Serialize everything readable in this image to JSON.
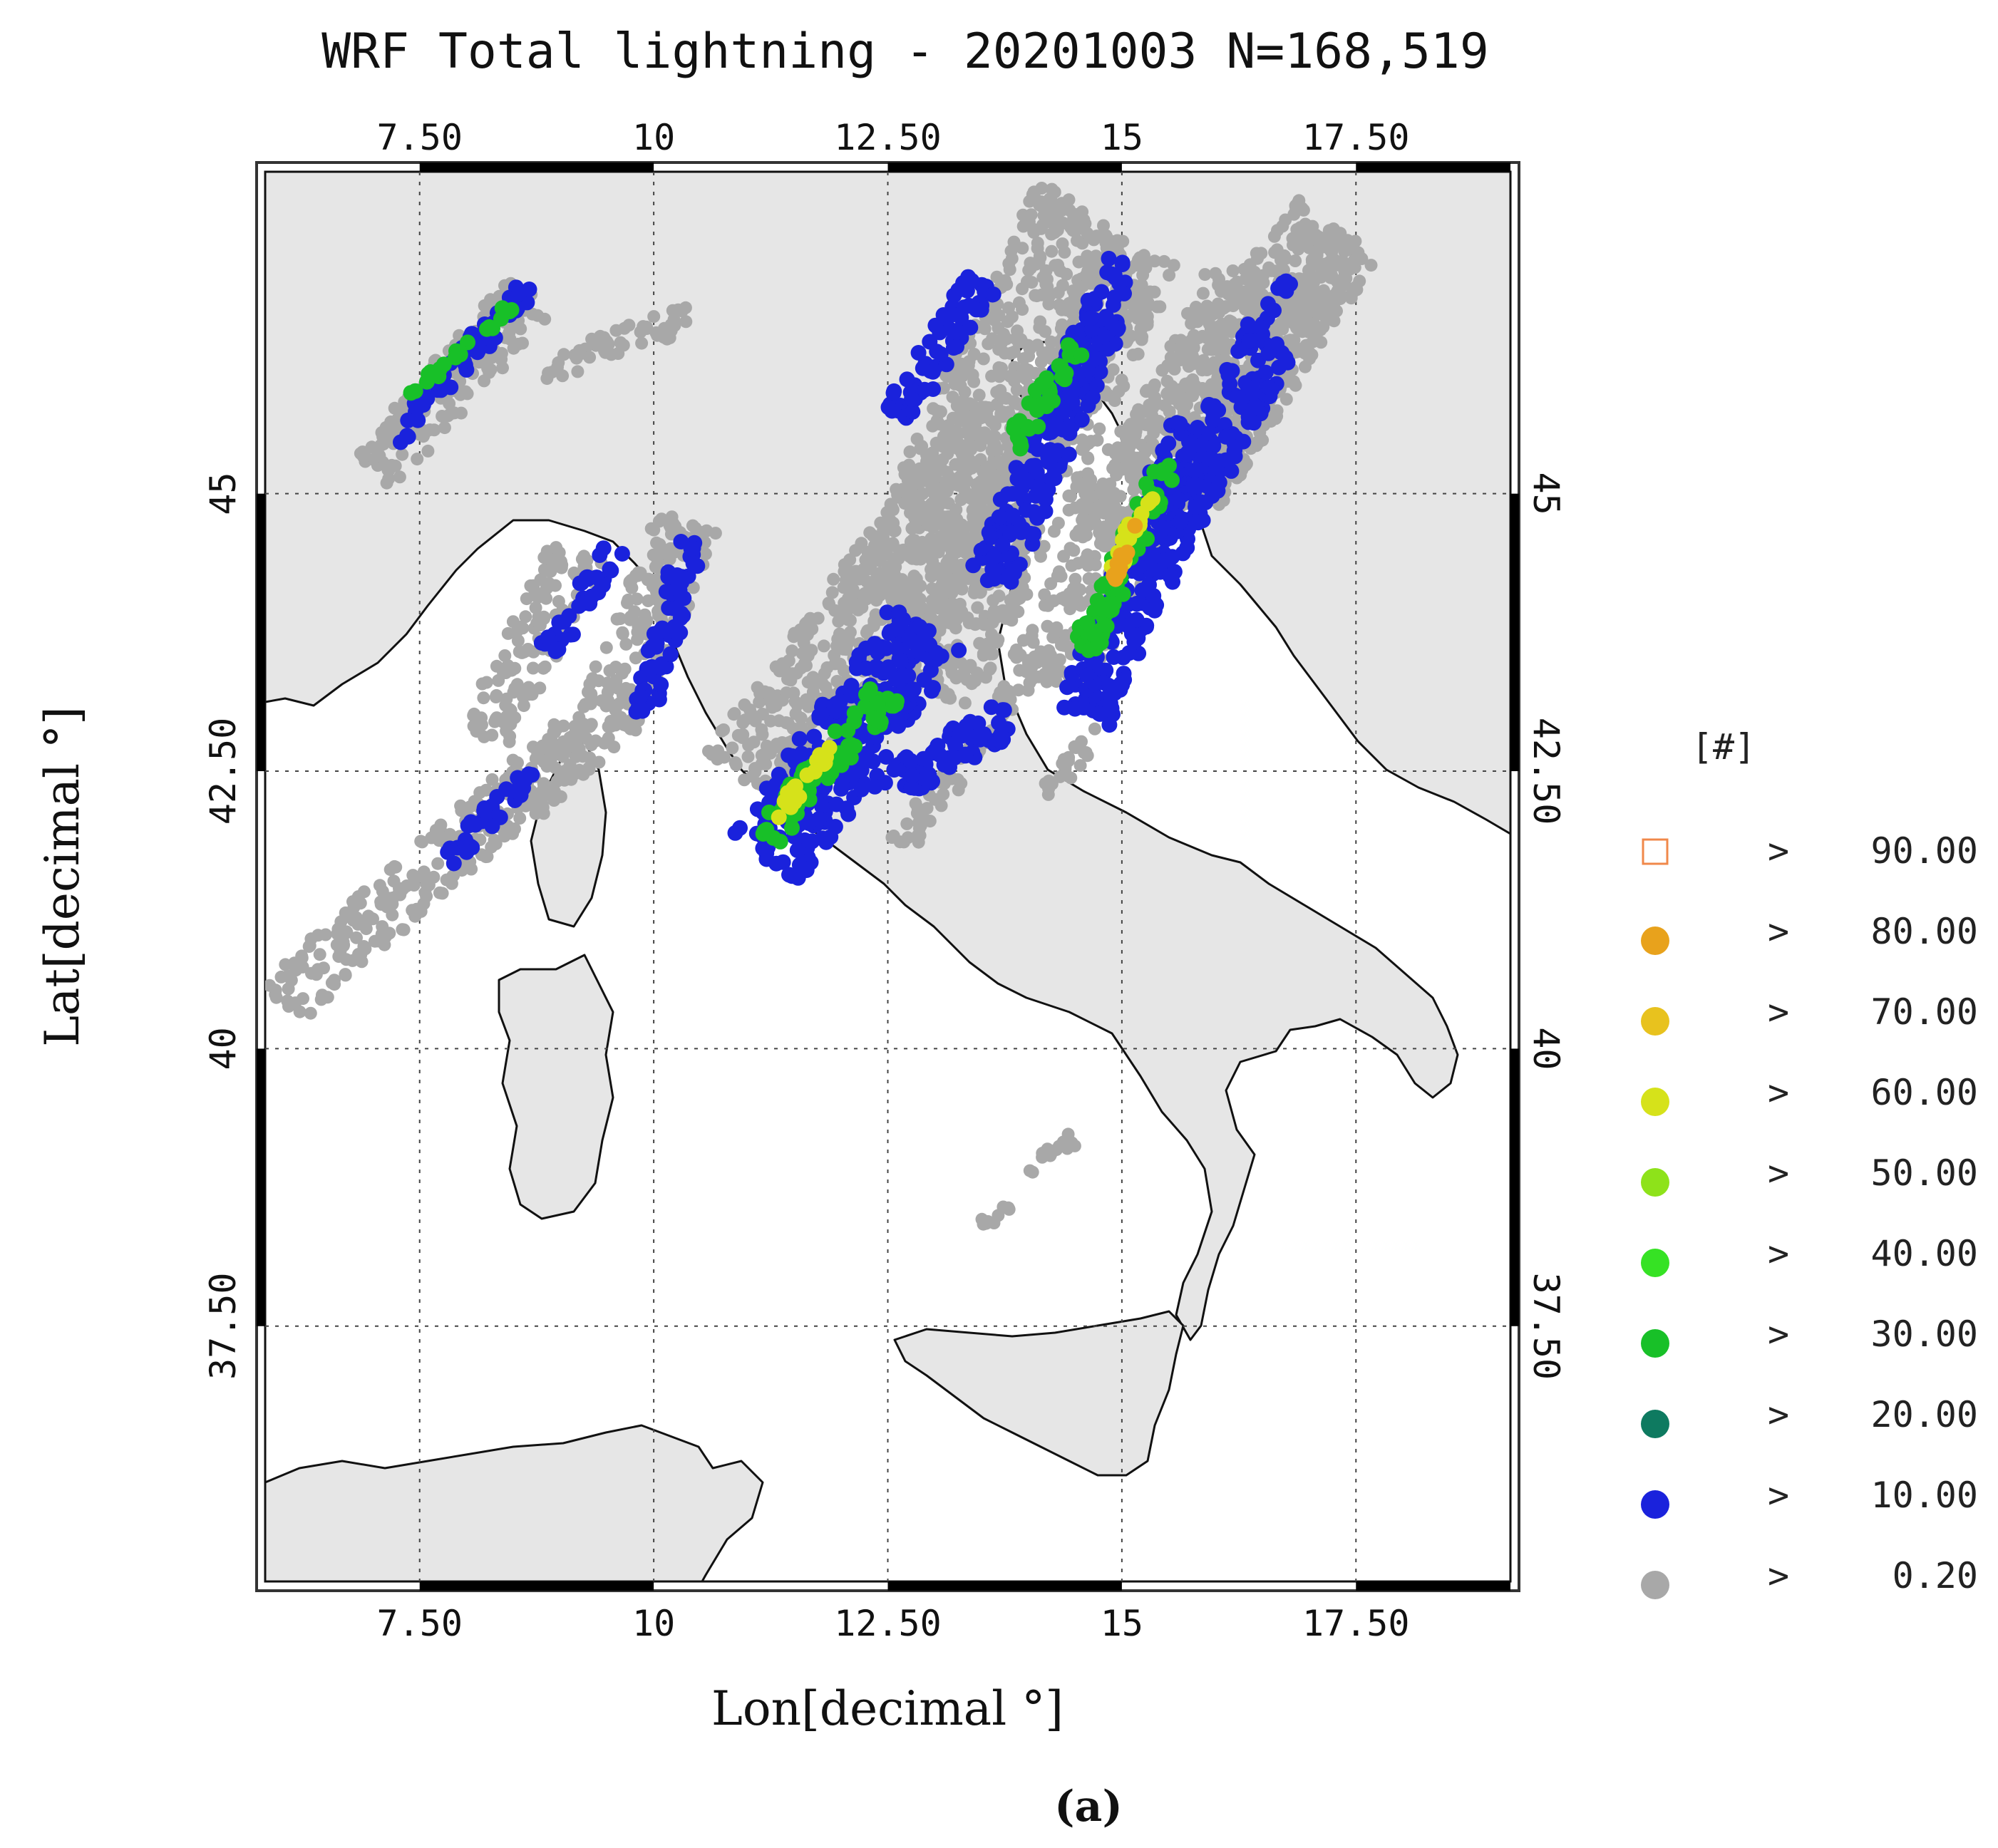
{
  "chart_data": {
    "type": "scatter",
    "title": "WRF Total lightning - 20201003 N=168,519",
    "xlabel": "Lon[decimal °]",
    "ylabel": "Lat[decimal °]",
    "xlim": [
      5.85,
      19.15
    ],
    "ylim": [
      35.2,
      47.9
    ],
    "x_ticks": [
      7.5,
      10,
      12.5,
      15,
      17.5
    ],
    "x_tick_labels": [
      "7.50",
      "10",
      "12.50",
      "15",
      "17.50"
    ],
    "y_ticks": [
      37.5,
      40,
      42.5,
      45
    ],
    "y_tick_labels": [
      "37.50",
      "40",
      "42.50",
      "45"
    ],
    "grid": true,
    "legend": {
      "title": "[#]",
      "placement": "right",
      "entries": [
        {
          "label": "90.00",
          "symbol": ">",
          "color": "#f0884a",
          "marker": "open-square"
        },
        {
          "label": "80.00",
          "symbol": ">",
          "color": "#e8a21c",
          "marker": "circle"
        },
        {
          "label": "70.00",
          "symbol": ">",
          "color": "#e8c21e",
          "marker": "circle"
        },
        {
          "label": "60.00",
          "symbol": ">",
          "color": "#d6e21a",
          "marker": "circle"
        },
        {
          "label": "50.00",
          "symbol": ">",
          "color": "#8ee21a",
          "marker": "circle"
        },
        {
          "label": "40.00",
          "symbol": ">",
          "color": "#36e224",
          "marker": "circle"
        },
        {
          "label": "30.00",
          "symbol": ">",
          "color": "#18c028",
          "marker": "circle"
        },
        {
          "label": "20.00",
          "symbol": ">",
          "color": "#0e7a60",
          "marker": "circle"
        },
        {
          "label": "10.00",
          "symbol": ">",
          "color": "#1a22dc",
          "marker": "circle"
        },
        {
          "label": "0.20",
          "symbol": ">",
          "color": "#a8a8a8",
          "marker": "circle"
        }
      ]
    },
    "series": [
      {
        "name": "0.20",
        "color": "#a8a8a8",
        "bands": [
          {
            "from": [
              6.0,
              40.4
            ],
            "to": [
              9.2,
              42.8
            ],
            "width": 0.6
          },
          {
            "from": [
              8.2,
              42.8
            ],
            "to": [
              9.2,
              44.5
            ],
            "width": 0.6
          },
          {
            "from": [
              8.6,
              42.2
            ],
            "to": [
              9.4,
              42.9
            ],
            "width": 0.6
          },
          {
            "from": [
              9.5,
              42.9
            ],
            "to": [
              10.4,
              44.8
            ],
            "width": 0.7
          },
          {
            "from": [
              11.0,
              42.4
            ],
            "to": [
              13.8,
              45.6
            ],
            "width": 1.1
          },
          {
            "from": [
              12.4,
              43.8
            ],
            "to": [
              14.6,
              47.6
            ],
            "width": 1.1
          },
          {
            "from": [
              13.0,
              43.2
            ],
            "to": [
              15.2,
              47.2
            ],
            "width": 0.9
          },
          {
            "from": [
              14.2,
              43.3
            ],
            "to": [
              16.4,
              47.0
            ],
            "width": 0.9
          },
          {
            "from": [
              14.8,
              44.6
            ],
            "to": [
              17.3,
              47.4
            ],
            "width": 1.1
          },
          {
            "from": [
              15.8,
              45.0
            ],
            "to": [
              17.5,
              47.3
            ],
            "width": 0.6
          },
          {
            "from": [
              12.6,
              41.8
            ],
            "to": [
              14.2,
              43.6
            ],
            "width": 0.3
          },
          {
            "from": [
              14.2,
              42.3
            ],
            "to": [
              14.8,
              42.9
            ],
            "width": 0.2
          },
          {
            "from": [
              7.0,
              45.2
            ],
            "to": [
              8.7,
              46.8
            ],
            "width": 0.6
          },
          {
            "from": [
              8.8,
              46.1
            ],
            "to": [
              10.4,
              46.6
            ],
            "width": 0.3
          },
          {
            "from": [
              14.0,
              38.9
            ],
            "to": [
              14.5,
              39.2
            ],
            "width": 0.15
          },
          {
            "from": [
              13.5,
              38.4
            ],
            "to": [
              13.8,
              38.6
            ],
            "width": 0.12
          }
        ]
      },
      {
        "name": "10.00",
        "color": "#1a22dc",
        "bands": [
          {
            "from": [
              11.2,
              41.7
            ],
            "to": [
              12.9,
              43.8
            ],
            "width": 0.9
          },
          {
            "from": [
              12.4,
              42.3
            ],
            "to": [
              13.8,
              43.0
            ],
            "width": 0.4
          },
          {
            "from": [
              13.6,
              44.2
            ],
            "to": [
              14.8,
              46.6
            ],
            "width": 0.5
          },
          {
            "from": [
              14.2,
              45.6
            ],
            "to": [
              15.0,
              47.1
            ],
            "width": 0.35
          },
          {
            "from": [
              12.6,
              45.7
            ],
            "to": [
              13.5,
              46.9
            ],
            "width": 0.35
          },
          {
            "from": [
              14.6,
              43.0
            ],
            "to": [
              15.8,
              45.6
            ],
            "width": 0.6
          },
          {
            "from": [
              15.3,
              44.3
            ],
            "to": [
              16.6,
              46.4
            ],
            "width": 0.55
          },
          {
            "from": [
              9.9,
              43.0
            ],
            "to": [
              10.4,
              44.6
            ],
            "width": 0.3
          },
          {
            "from": [
              8.9,
              43.6
            ],
            "to": [
              9.6,
              44.5
            ],
            "width": 0.25
          },
          {
            "from": [
              7.8,
              41.7
            ],
            "to": [
              8.7,
              42.5
            ],
            "width": 0.2
          },
          {
            "from": [
              7.2,
              45.5
            ],
            "to": [
              8.7,
              46.9
            ],
            "width": 0.25
          },
          {
            "from": [
              16.3,
              46.4
            ],
            "to": [
              16.8,
              46.9
            ],
            "width": 0.15
          }
        ]
      },
      {
        "name": "30.00",
        "color": "#18c028",
        "bands": [
          {
            "from": [
              11.2,
              41.9
            ],
            "to": [
              12.5,
              43.2
            ],
            "width": 0.35
          },
          {
            "from": [
              14.6,
              43.6
            ],
            "to": [
              15.5,
              45.3
            ],
            "width": 0.3
          },
          {
            "from": [
              13.8,
              45.4
            ],
            "to": [
              14.5,
              46.3
            ],
            "width": 0.25
          },
          {
            "from": [
              7.4,
              45.9
            ],
            "to": [
              8.5,
              46.7
            ],
            "width": 0.12
          }
        ]
      },
      {
        "name": "60.00",
        "color": "#d6e21a",
        "bands": [
          {
            "from": [
              11.3,
              42.1
            ],
            "to": [
              11.9,
              42.7
            ],
            "width": 0.15
          },
          {
            "from": [
              14.9,
              44.3
            ],
            "to": [
              15.3,
              45.0
            ],
            "width": 0.15
          }
        ]
      },
      {
        "name": "80.00",
        "color": "#e8a21c",
        "bands": [
          {
            "from": [
              14.9,
              44.2
            ],
            "to": [
              15.2,
              44.8
            ],
            "width": 0.1
          }
        ]
      }
    ]
  },
  "panel_label": "(a)"
}
